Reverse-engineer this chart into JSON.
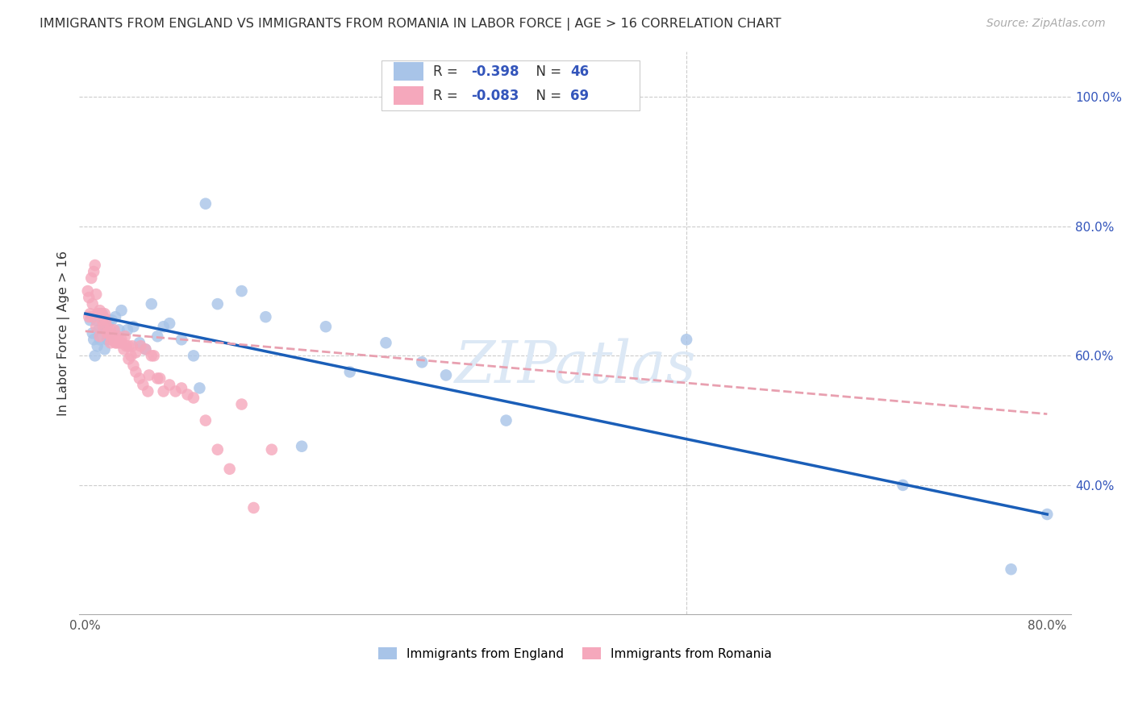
{
  "title": "IMMIGRANTS FROM ENGLAND VS IMMIGRANTS FROM ROMANIA IN LABOR FORCE | AGE > 16 CORRELATION CHART",
  "source": "Source: ZipAtlas.com",
  "ylabel": "In Labor Force | Age > 16",
  "xlim": [
    -0.005,
    0.82
  ],
  "ylim": [
    0.2,
    1.07
  ],
  "xtick_vals": [
    0.0,
    0.1,
    0.2,
    0.3,
    0.4,
    0.5,
    0.6,
    0.7,
    0.8
  ],
  "xticklabels": [
    "0.0%",
    "",
    "",
    "",
    "",
    "",
    "",
    "",
    "80.0%"
  ],
  "ytick_vals": [
    0.4,
    0.6,
    0.8,
    1.0
  ],
  "yticklabels": [
    "40.0%",
    "60.0%",
    "80.0%",
    "100.0%"
  ],
  "england_color": "#a8c4e8",
  "romania_color": "#f5a8bc",
  "england_line_color": "#1a5eb8",
  "romania_line_color": "#e8a0b0",
  "legend_color": "#3355bb",
  "grid_color": "#cccccc",
  "watermark_color": "#dce8f5",
  "england_x": [
    0.004,
    0.006,
    0.007,
    0.008,
    0.009,
    0.01,
    0.011,
    0.012,
    0.013,
    0.014,
    0.015,
    0.016,
    0.017,
    0.018,
    0.019,
    0.02,
    0.022,
    0.025,
    0.028,
    0.03,
    0.035,
    0.04,
    0.045,
    0.05,
    0.055,
    0.06,
    0.065,
    0.07,
    0.08,
    0.09,
    0.095,
    0.1,
    0.11,
    0.13,
    0.15,
    0.18,
    0.2,
    0.22,
    0.25,
    0.28,
    0.3,
    0.35,
    0.5,
    0.68,
    0.77,
    0.8
  ],
  "england_y": [
    0.655,
    0.635,
    0.625,
    0.6,
    0.655,
    0.615,
    0.64,
    0.625,
    0.66,
    0.665,
    0.645,
    0.61,
    0.64,
    0.625,
    0.625,
    0.655,
    0.655,
    0.66,
    0.64,
    0.67,
    0.64,
    0.645,
    0.62,
    0.61,
    0.68,
    0.63,
    0.645,
    0.65,
    0.625,
    0.6,
    0.55,
    0.835,
    0.68,
    0.7,
    0.66,
    0.46,
    0.645,
    0.575,
    0.62,
    0.59,
    0.57,
    0.5,
    0.625,
    0.4,
    0.27,
    0.355
  ],
  "romania_x": [
    0.002,
    0.003,
    0.004,
    0.005,
    0.006,
    0.007,
    0.008,
    0.009,
    0.01,
    0.011,
    0.012,
    0.013,
    0.014,
    0.015,
    0.016,
    0.017,
    0.018,
    0.019,
    0.02,
    0.021,
    0.022,
    0.024,
    0.025,
    0.026,
    0.027,
    0.028,
    0.03,
    0.032,
    0.034,
    0.036,
    0.038,
    0.04,
    0.042,
    0.045,
    0.048,
    0.052,
    0.055,
    0.06,
    0.065,
    0.07,
    0.075,
    0.08,
    0.085,
    0.09,
    0.1,
    0.11,
    0.12,
    0.13,
    0.14,
    0.155,
    0.003,
    0.006,
    0.009,
    0.012,
    0.015,
    0.018,
    0.021,
    0.024,
    0.027,
    0.03,
    0.033,
    0.036,
    0.039,
    0.042,
    0.046,
    0.05,
    0.053,
    0.057,
    0.062
  ],
  "romania_y": [
    0.7,
    0.69,
    0.665,
    0.72,
    0.68,
    0.73,
    0.74,
    0.695,
    0.665,
    0.665,
    0.67,
    0.665,
    0.655,
    0.66,
    0.665,
    0.655,
    0.645,
    0.635,
    0.635,
    0.64,
    0.625,
    0.64,
    0.62,
    0.62,
    0.63,
    0.62,
    0.625,
    0.61,
    0.615,
    0.595,
    0.6,
    0.585,
    0.575,
    0.565,
    0.555,
    0.545,
    0.6,
    0.565,
    0.545,
    0.555,
    0.545,
    0.55,
    0.54,
    0.535,
    0.5,
    0.455,
    0.425,
    0.525,
    0.365,
    0.455,
    0.66,
    0.66,
    0.645,
    0.63,
    0.645,
    0.635,
    0.62,
    0.625,
    0.625,
    0.62,
    0.63,
    0.615,
    0.615,
    0.605,
    0.615,
    0.61,
    0.57,
    0.6,
    0.565
  ],
  "eng_trendline_x": [
    0.0,
    0.8
  ],
  "eng_trendline_y": [
    0.665,
    0.355
  ],
  "rom_trendline_x": [
    0.0,
    0.8
  ],
  "rom_trendline_y": [
    0.638,
    0.51
  ]
}
